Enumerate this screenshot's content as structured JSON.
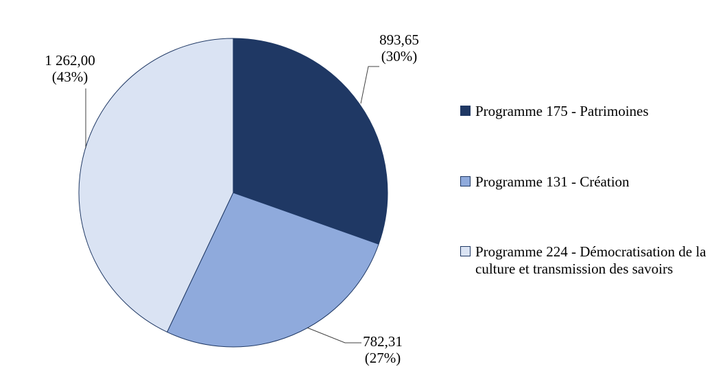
{
  "chart_data": {
    "type": "pie",
    "title": "",
    "legend_position": "right",
    "start_angle_deg": -90,
    "direction": "clockwise",
    "slice_border_color": "#1F3864",
    "leader_line_color": "#404040",
    "series": [
      {
        "name": "Programme 175 - Patrimoines",
        "value": 893.65,
        "percent": 30,
        "value_label": "893,65",
        "percent_label": "(30%)",
        "color": "#1F3864"
      },
      {
        "name": "Programme 131 - Création",
        "value": 782.31,
        "percent": 27,
        "value_label": "782,31",
        "percent_label": "(27%)",
        "color": "#8FAADC"
      },
      {
        "name": "Programme 224 - Démocratisation de la culture et transmission des savoirs",
        "value": 1262.0,
        "percent": 43,
        "value_label": "1 262,00",
        "percent_label": "(43%)",
        "color": "#DAE3F3"
      }
    ]
  }
}
